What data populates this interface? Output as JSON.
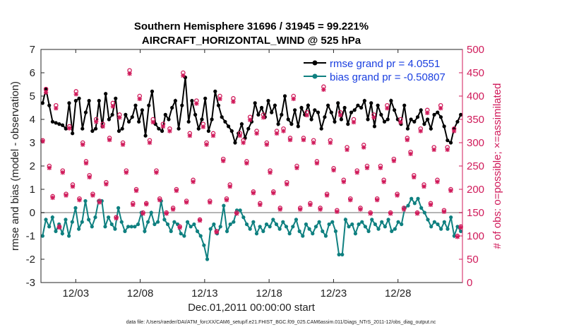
{
  "chart_data": {
    "type": "line",
    "title": "Southern Hemisphere 31696 / 31945 = 99.221%",
    "subtitle": "AIRCRAFT_HORIZONTAL_WIND @ 525 hPa",
    "xlabel": "Dec.01,2011 00:00:00 start",
    "ylabel_left": "rmse and bias (model - observation)",
    "ylabel_right": "# of obs: o=possible; ×=assimilated",
    "xlim": [
      0.3,
      33
    ],
    "ylim_left": [
      -3,
      7
    ],
    "ylim_right": [
      0,
      500
    ],
    "x_ticks": [
      3,
      8,
      13,
      18,
      23,
      28
    ],
    "x_tick_labels": [
      "12/03",
      "12/08",
      "12/13",
      "12/18",
      "12/23",
      "12/28"
    ],
    "y_ticks_left": [
      -3,
      -2,
      -1,
      0,
      1,
      2,
      3,
      4,
      5,
      6,
      7
    ],
    "y_ticks_right": [
      0,
      50,
      100,
      150,
      200,
      250,
      300,
      350,
      400,
      450,
      500
    ],
    "zero_line": 0,
    "legend_position": "top-right",
    "series": [
      {
        "name": "rmse grand pr = 4.0551",
        "color": "#000000",
        "axis": "left",
        "values": [
          4.7,
          5.3,
          4.6,
          3.9,
          3.85,
          3.8,
          3.75,
          3.6,
          4.7,
          3.4,
          4.8,
          4.9,
          3.6,
          4.3,
          4.8,
          3.5,
          3.6,
          4.8,
          3.7,
          5.1,
          4.0,
          4.2,
          4.9,
          3.5,
          3.6,
          4.2,
          3.9,
          4.1,
          4.6,
          3.9,
          4.4,
          3.3,
          4.6,
          5.2,
          3.8,
          3.6,
          3.5,
          4.2,
          4.0,
          4.5,
          4.8,
          3.6,
          4.6,
          5.8,
          3.9,
          4.8,
          4.2,
          3.6,
          4.0,
          4.9,
          3.5,
          4.0,
          5.2,
          4.6,
          4.1,
          3.9,
          3.7,
          3.5,
          3.0,
          3.4,
          3.8,
          3.2,
          3.6,
          3.9,
          4.7,
          4.2,
          4.5,
          4.1,
          4.8,
          4.3,
          4.6,
          3.8,
          4.2,
          5.0,
          4.0,
          3.8,
          4.4,
          3.7,
          4.5,
          4.2,
          4.6,
          4.0,
          4.4,
          4.3,
          3.6,
          4.1,
          4.6,
          4.3,
          3.9,
          4.7,
          4.0,
          4.5,
          3.8,
          4.3,
          4.4,
          4.6,
          4.5,
          4.8,
          4.0,
          4.7,
          3.7,
          4.6,
          4.2,
          3.9,
          4.0,
          4.8,
          4.4,
          4.0,
          3.8,
          4.6,
          3.6,
          4.0,
          3.9,
          4.1,
          4.4,
          3.8,
          4.0,
          3.6,
          4.2,
          4.3,
          4.1,
          3.7,
          3.1,
          3.0,
          3.6,
          3.9,
          4.2
        ]
      },
      {
        "name": "bias grand pr = -0.50807",
        "color": "#0f8080",
        "axis": "left",
        "values": [
          -1.0,
          -0.3,
          -0.6,
          -0.2,
          -0.8,
          -0.5,
          -0.9,
          -0.3,
          -1.0,
          -0.4,
          0.2,
          -0.7,
          -0.4,
          0.5,
          -0.3,
          -0.6,
          -0.2,
          0.5,
          0.5,
          -0.6,
          -0.2,
          -0.5,
          -0.7,
          0.2,
          -0.4,
          -0.8,
          -0.6,
          -0.6,
          -0.6,
          -0.5,
          0.0,
          -0.8,
          -0.4,
          0.0,
          -0.5,
          -0.4,
          0.5,
          -0.3,
          -0.5,
          -0.8,
          -0.4,
          -0.5,
          -0.9,
          -1.0,
          -0.4,
          -0.6,
          -0.5,
          -0.8,
          -1.0,
          -1.4,
          -2.0,
          -0.7,
          -0.5,
          -0.9,
          -0.6,
          0.3,
          -0.8,
          -0.5,
          -0.4,
          0.1,
          0.1,
          -0.2,
          -0.5,
          -0.7,
          -0.4,
          -0.9,
          -0.6,
          -0.8,
          -0.5,
          -0.6,
          -0.3,
          -0.5,
          -0.7,
          -0.4,
          -0.6,
          -0.9,
          -0.6,
          -0.3,
          -0.8,
          -1.0,
          -0.5,
          -0.7,
          -0.9,
          -0.6,
          -0.4,
          -0.8,
          -1.0,
          -0.5,
          -0.4,
          -0.8,
          -1.8,
          -1.8,
          -0.3,
          -0.6,
          -0.5,
          -0.9,
          -0.5,
          -0.4,
          -0.6,
          -0.8,
          -0.3,
          -0.5,
          -0.7,
          -0.4,
          -0.6,
          -0.3,
          -0.8,
          -0.7,
          -0.4,
          -0.5,
          0.2,
          0.3,
          0.6,
          0.4,
          0.6,
          0.2,
          0.0,
          -0.3,
          -0.6,
          -0.4,
          -0.5,
          -0.7,
          -0.4,
          -0.7,
          -0.2,
          -1.0,
          -0.6,
          -0.8
        ]
      },
      {
        "name": "possible",
        "color": "#d01a5a",
        "axis": "right",
        "marker": "o",
        "values": [
          305,
          415,
          250,
          185,
          380,
          120,
          240,
          190,
          335,
          210,
          410,
          180,
          300,
          260,
          230,
          190,
          350,
          175,
          340,
          215,
          310,
          385,
          140,
          360,
          300,
          240,
          455,
          170,
          200,
          400,
          150,
          170,
          305,
          350,
          240,
          180,
          340,
          150,
          330,
          160,
          200,
          120,
          450,
          175,
          320,
          220,
          390,
          135,
          340,
          300,
          175,
          320,
          110,
          400,
          265,
          180,
          210,
          395,
          150,
          320,
          305,
          260,
          355,
          195,
          325,
          170,
          360,
          300,
          240,
          195,
          325,
          160,
          330,
          215,
          310,
          400,
          250,
          160,
          310,
          365,
          170,
          305,
          260,
          160,
          420,
          190,
          305,
          245,
          155,
          365,
          220,
          290,
          180,
          350,
          240,
          160,
          295,
          250,
          150,
          360,
          180,
          250,
          220,
          380,
          150,
          265,
          190,
          350,
          160,
          310,
          280,
          230,
          150,
          330,
          210,
          370,
          170,
          290,
          220,
          380,
          155,
          290,
          200,
          330,
          100,
          120
        ]
      },
      {
        "name": "assimilated",
        "color": "#d01a5a",
        "axis": "right",
        "marker": "x",
        "values": [
          303,
          408,
          246,
          182,
          374,
          118,
          236,
          187,
          331,
          206,
          404,
          177,
          296,
          256,
          226,
          187,
          345,
          172,
          335,
          211,
          306,
          378,
          138,
          354,
          296,
          236,
          448,
          167,
          197,
          394,
          148,
          168,
          300,
          344,
          236,
          177,
          335,
          148,
          325,
          157,
          197,
          118,
          444,
          172,
          315,
          216,
          384,
          133,
          334,
          296,
          172,
          315,
          108,
          394,
          261,
          177,
          206,
          388,
          148,
          315,
          300,
          256,
          349,
          192,
          320,
          167,
          354,
          296,
          236,
          192,
          320,
          157,
          325,
          211,
          306,
          394,
          246,
          157,
          306,
          359,
          167,
          300,
          256,
          157,
          414,
          187,
          300,
          241,
          152,
          359,
          216,
          285,
          177,
          344,
          236,
          157,
          290,
          246,
          148,
          354,
          177,
          246,
          216,
          374,
          148,
          261,
          187,
          344,
          157,
          306,
          276,
          226,
          148,
          325,
          206,
          364,
          167,
          285,
          216,
          374,
          152,
          285,
          197,
          325,
          98,
          118
        ]
      }
    ]
  },
  "footer": {
    "datafile": "data file: /Users/raeder/DAI/ATM_forcXX/CAM6_setup/f.e21.FHIST_BGC.f09_025.CAM6assim.011/Diags_NTrS_2011-12/obs_diag_output.nc"
  }
}
